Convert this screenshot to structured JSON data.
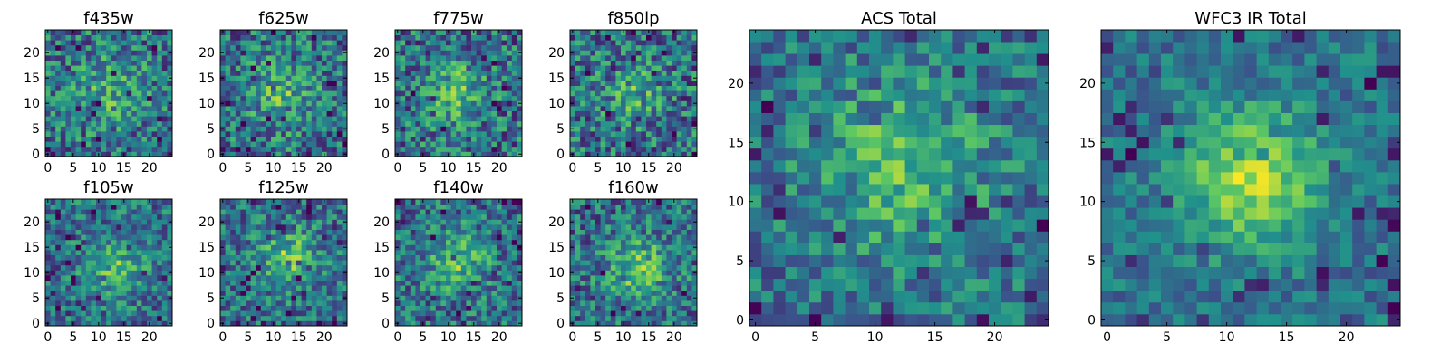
{
  "figure": {
    "colormap": "viridis",
    "colormap_stops": [
      "#440154",
      "#3b528b",
      "#21918c",
      "#5ec962",
      "#fde725"
    ]
  },
  "chart_data": [
    {
      "type": "heatmap",
      "title": "f435w",
      "grid": [
        25,
        25
      ],
      "xlim": [
        -0.5,
        24.5
      ],
      "ylim": [
        -0.5,
        24.5
      ],
      "xticks": [
        0,
        5,
        10,
        15,
        20
      ],
      "yticks": [
        0,
        5,
        10,
        15,
        20
      ],
      "seed": 11,
      "noise": 0.58,
      "blob": [
        12,
        13,
        5,
        0.22
      ],
      "floor": 0.1
    },
    {
      "type": "heatmap",
      "title": "f625w",
      "grid": [
        25,
        25
      ],
      "xlim": [
        -0.5,
        24.5
      ],
      "ylim": [
        -0.5,
        24.5
      ],
      "xticks": [
        0,
        5,
        10,
        15,
        20
      ],
      "yticks": [
        0,
        5,
        10,
        15,
        20
      ],
      "seed": 23,
      "noise": 0.58,
      "blob": [
        12,
        12,
        5,
        0.24
      ],
      "floor": 0.1
    },
    {
      "type": "heatmap",
      "title": "f775w",
      "grid": [
        25,
        25
      ],
      "xlim": [
        -0.5,
        24.5
      ],
      "ylim": [
        -0.5,
        24.5
      ],
      "xticks": [
        0,
        5,
        10,
        15,
        20
      ],
      "yticks": [
        0,
        5,
        10,
        15,
        20
      ],
      "seed": 37,
      "noise": 0.6,
      "blob": [
        12,
        12,
        4,
        0.3
      ],
      "floor": 0.08
    },
    {
      "type": "heatmap",
      "title": "f850lp",
      "grid": [
        25,
        25
      ],
      "xlim": [
        -0.5,
        24.5
      ],
      "ylim": [
        -0.5,
        24.5
      ],
      "xticks": [
        0,
        5,
        10,
        15,
        20
      ],
      "yticks": [
        0,
        5,
        10,
        15,
        20
      ],
      "seed": 41,
      "noise": 0.6,
      "blob": [
        12,
        12,
        4,
        0.22
      ],
      "floor": 0.1
    },
    {
      "type": "heatmap",
      "title": "f105w",
      "grid": [
        25,
        25
      ],
      "xlim": [
        -0.5,
        24.5
      ],
      "ylim": [
        -0.5,
        24.5
      ],
      "xticks": [
        0,
        5,
        10,
        15,
        20
      ],
      "yticks": [
        0,
        5,
        10,
        15,
        20
      ],
      "seed": 53,
      "noise": 0.5,
      "blob": [
        13,
        11,
        4,
        0.3
      ],
      "floor": 0.18
    },
    {
      "type": "heatmap",
      "title": "f125w",
      "grid": [
        25,
        25
      ],
      "xlim": [
        -0.5,
        24.5
      ],
      "ylim": [
        -0.5,
        24.5
      ],
      "xticks": [
        0,
        5,
        10,
        15,
        20
      ],
      "yticks": [
        0,
        5,
        10,
        15,
        20
      ],
      "seed": 67,
      "noise": 0.5,
      "blob": [
        13,
        13,
        4,
        0.34
      ],
      "floor": 0.12
    },
    {
      "type": "heatmap",
      "title": "f140w",
      "grid": [
        25,
        25
      ],
      "xlim": [
        -0.5,
        24.5
      ],
      "ylim": [
        -0.5,
        24.5
      ],
      "xticks": [
        0,
        5,
        10,
        15,
        20
      ],
      "yticks": [
        0,
        5,
        10,
        15,
        20
      ],
      "seed": 71,
      "noise": 0.52,
      "blob": [
        12,
        12,
        4,
        0.3
      ],
      "floor": 0.1
    },
    {
      "type": "heatmap",
      "title": "f160w",
      "grid": [
        25,
        25
      ],
      "xlim": [
        -0.5,
        24.5
      ],
      "ylim": [
        -0.5,
        24.5
      ],
      "xticks": [
        0,
        5,
        10,
        15,
        20
      ],
      "yticks": [
        0,
        5,
        10,
        15,
        20
      ],
      "seed": 89,
      "noise": 0.55,
      "blob": [
        13,
        11,
        4,
        0.36
      ],
      "floor": 0.06
    },
    {
      "type": "heatmap",
      "title": "ACS Total",
      "grid": [
        25,
        25
      ],
      "xlim": [
        -0.5,
        24.5
      ],
      "ylim": [
        -0.5,
        24.5
      ],
      "xticks": [
        0,
        5,
        10,
        15,
        20
      ],
      "yticks": [
        0,
        5,
        10,
        15,
        20
      ],
      "seed": 97,
      "noise": 0.42,
      "blob": [
        12,
        13,
        5,
        0.32
      ],
      "floor": 0.2
    },
    {
      "type": "heatmap",
      "title": "WFC3 IR Total",
      "grid": [
        25,
        25
      ],
      "xlim": [
        -0.5,
        24.5
      ],
      "ylim": [
        -0.5,
        24.5
      ],
      "xticks": [
        0,
        5,
        10,
        15,
        20
      ],
      "yticks": [
        0,
        5,
        10,
        15,
        20
      ],
      "seed": 103,
      "noise": 0.32,
      "blob": [
        12,
        12,
        4,
        0.48
      ],
      "floor": 0.15
    }
  ]
}
